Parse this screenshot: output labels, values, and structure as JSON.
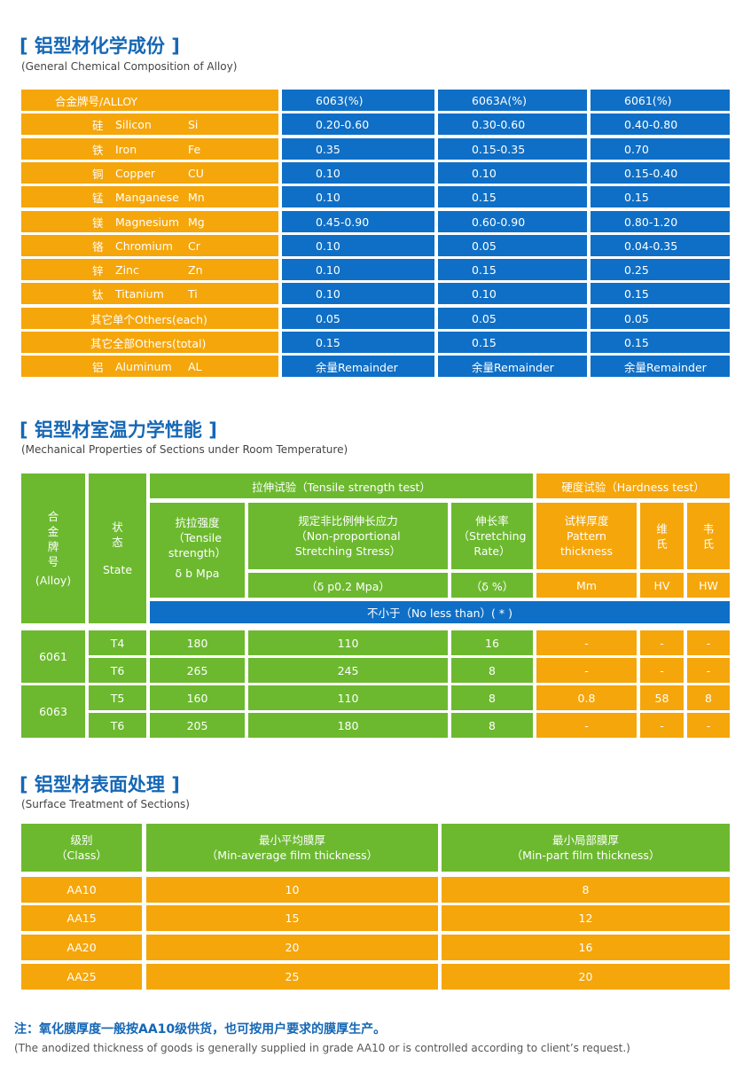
{
  "chem": {
    "title_cn": "铝型材化学成份",
    "bracket_open": "[",
    "bracket_close": "]",
    "subtitle": "(General Chemical Composition of Alloy)",
    "header": [
      "合金牌号/ALLOY",
      "6063(%)",
      "6063A(%)",
      "6061(%)"
    ],
    "rows": [
      {
        "cn": "硅",
        "en": "Silicon",
        "sym": "Si",
        "v": [
          "0.20-0.60",
          "0.30-0.60",
          "0.40-0.80"
        ]
      },
      {
        "cn": "铁",
        "en": "Iron",
        "sym": "Fe",
        "v": [
          "0.35",
          "0.15-0.35",
          "0.70"
        ]
      },
      {
        "cn": "铜",
        "en": "Copper",
        "sym": "CU",
        "v": [
          "0.10",
          "0.10",
          "0.15-0.40"
        ]
      },
      {
        "cn": "锰",
        "en": "Manganese",
        "sym": "Mn",
        "v": [
          "0.10",
          "0.15",
          "0.15"
        ]
      },
      {
        "cn": "镁",
        "en": "Magnesium",
        "sym": "Mg",
        "v": [
          "0.45-0.90",
          "0.60-0.90",
          "0.80-1.20"
        ]
      },
      {
        "cn": "铬",
        "en": "Chromium",
        "sym": "Cr",
        "v": [
          "0.10",
          "0.05",
          "0.04-0.35"
        ]
      },
      {
        "cn": "锌",
        "en": "Zinc",
        "sym": "Zn",
        "v": [
          "0.10",
          "0.15",
          "0.25"
        ]
      },
      {
        "cn": "钛",
        "en": "Titanium",
        "sym": "Ti",
        "v": [
          "0.10",
          "0.10",
          "0.15"
        ]
      },
      {
        "label": "其它单个Others(each)",
        "v": [
          "0.05",
          "0.05",
          "0.05"
        ]
      },
      {
        "label": "其它全部Others(total)",
        "v": [
          "0.15",
          "0.15",
          "0.15"
        ]
      },
      {
        "cn": "铝",
        "en": "Aluminum",
        "sym": "AL",
        "v": [
          "余量Remainder",
          "余量Remainder",
          "余量Remainder"
        ]
      }
    ]
  },
  "mech": {
    "title_cn": "铝型材室温力学性能",
    "subtitle": "(Mechanical Properties of Sections under Room Temperature)",
    "alloy_col": [
      "合",
      "金",
      "牌",
      "号",
      "(Alloy)"
    ],
    "state_col": [
      "状",
      "态",
      "State"
    ],
    "tensile_header": "拉伸试验（Tensile strength test）",
    "hardness_header": "硬度试验（Hardness test）",
    "tensile_strength": [
      "抗拉强度",
      "（Tensile",
      "strength）",
      "δ b Mpa"
    ],
    "proof_stress": [
      "规定非比例伸长应力",
      "（Non-proportional",
      "Stretching Stress）"
    ],
    "proof_unit": "（δ p0.2 Mpa）",
    "elongation": [
      "伸长率",
      "（Stretching",
      "Rate）"
    ],
    "elongation_unit": "（δ %）",
    "thickness": [
      "试样厚度",
      "Pattern",
      "thickness"
    ],
    "thickness_unit": "Mm",
    "hv": [
      "维",
      "氏"
    ],
    "hv_unit": "HV",
    "hw": [
      "韦",
      "氏"
    ],
    "hw_unit": "HW",
    "no_less": "不小于（No less than）( * )",
    "groups": [
      {
        "alloy": "6061",
        "rows": [
          {
            "state": "T4",
            "v": [
              "180",
              "110",
              "16",
              "-",
              "-",
              "-"
            ]
          },
          {
            "state": "T6",
            "v": [
              "265",
              "245",
              "8",
              "-",
              "-",
              "-"
            ]
          }
        ]
      },
      {
        "alloy": "6063",
        "rows": [
          {
            "state": "T5",
            "v": [
              "160",
              "110",
              "8",
              "0.8",
              "58",
              "8"
            ]
          },
          {
            "state": "T6",
            "v": [
              "205",
              "180",
              "8",
              "-",
              "-",
              "-"
            ]
          }
        ]
      }
    ]
  },
  "surface": {
    "title_cn": "铝型材表面处理",
    "subtitle": "(Surface Treatment of Sections)",
    "header": [
      [
        "级别",
        "（Class）"
      ],
      [
        "最小平均膜厚",
        "（Min-average film thickness）"
      ],
      [
        "最小局部膜厚",
        "（Min-part film thickness）"
      ]
    ],
    "rows": [
      [
        "AA10",
        "10",
        "8"
      ],
      [
        "AA15",
        "15",
        "12"
      ],
      [
        "AA20",
        "20",
        "16"
      ],
      [
        "AA25",
        "25",
        "20"
      ]
    ]
  },
  "note": {
    "cn": "注：氧化膜厚度一般按AA10级供货，也可按用户要求的膜厚生产。",
    "en": "(The anodized thickness of goods is generally supplied in grade AA10 or is controlled according to client’s request.)"
  },
  "colors": {
    "orange": "#f5a60b",
    "blue": "#0f6fc6",
    "green": "#6cb92f",
    "title": "#1567b5"
  }
}
